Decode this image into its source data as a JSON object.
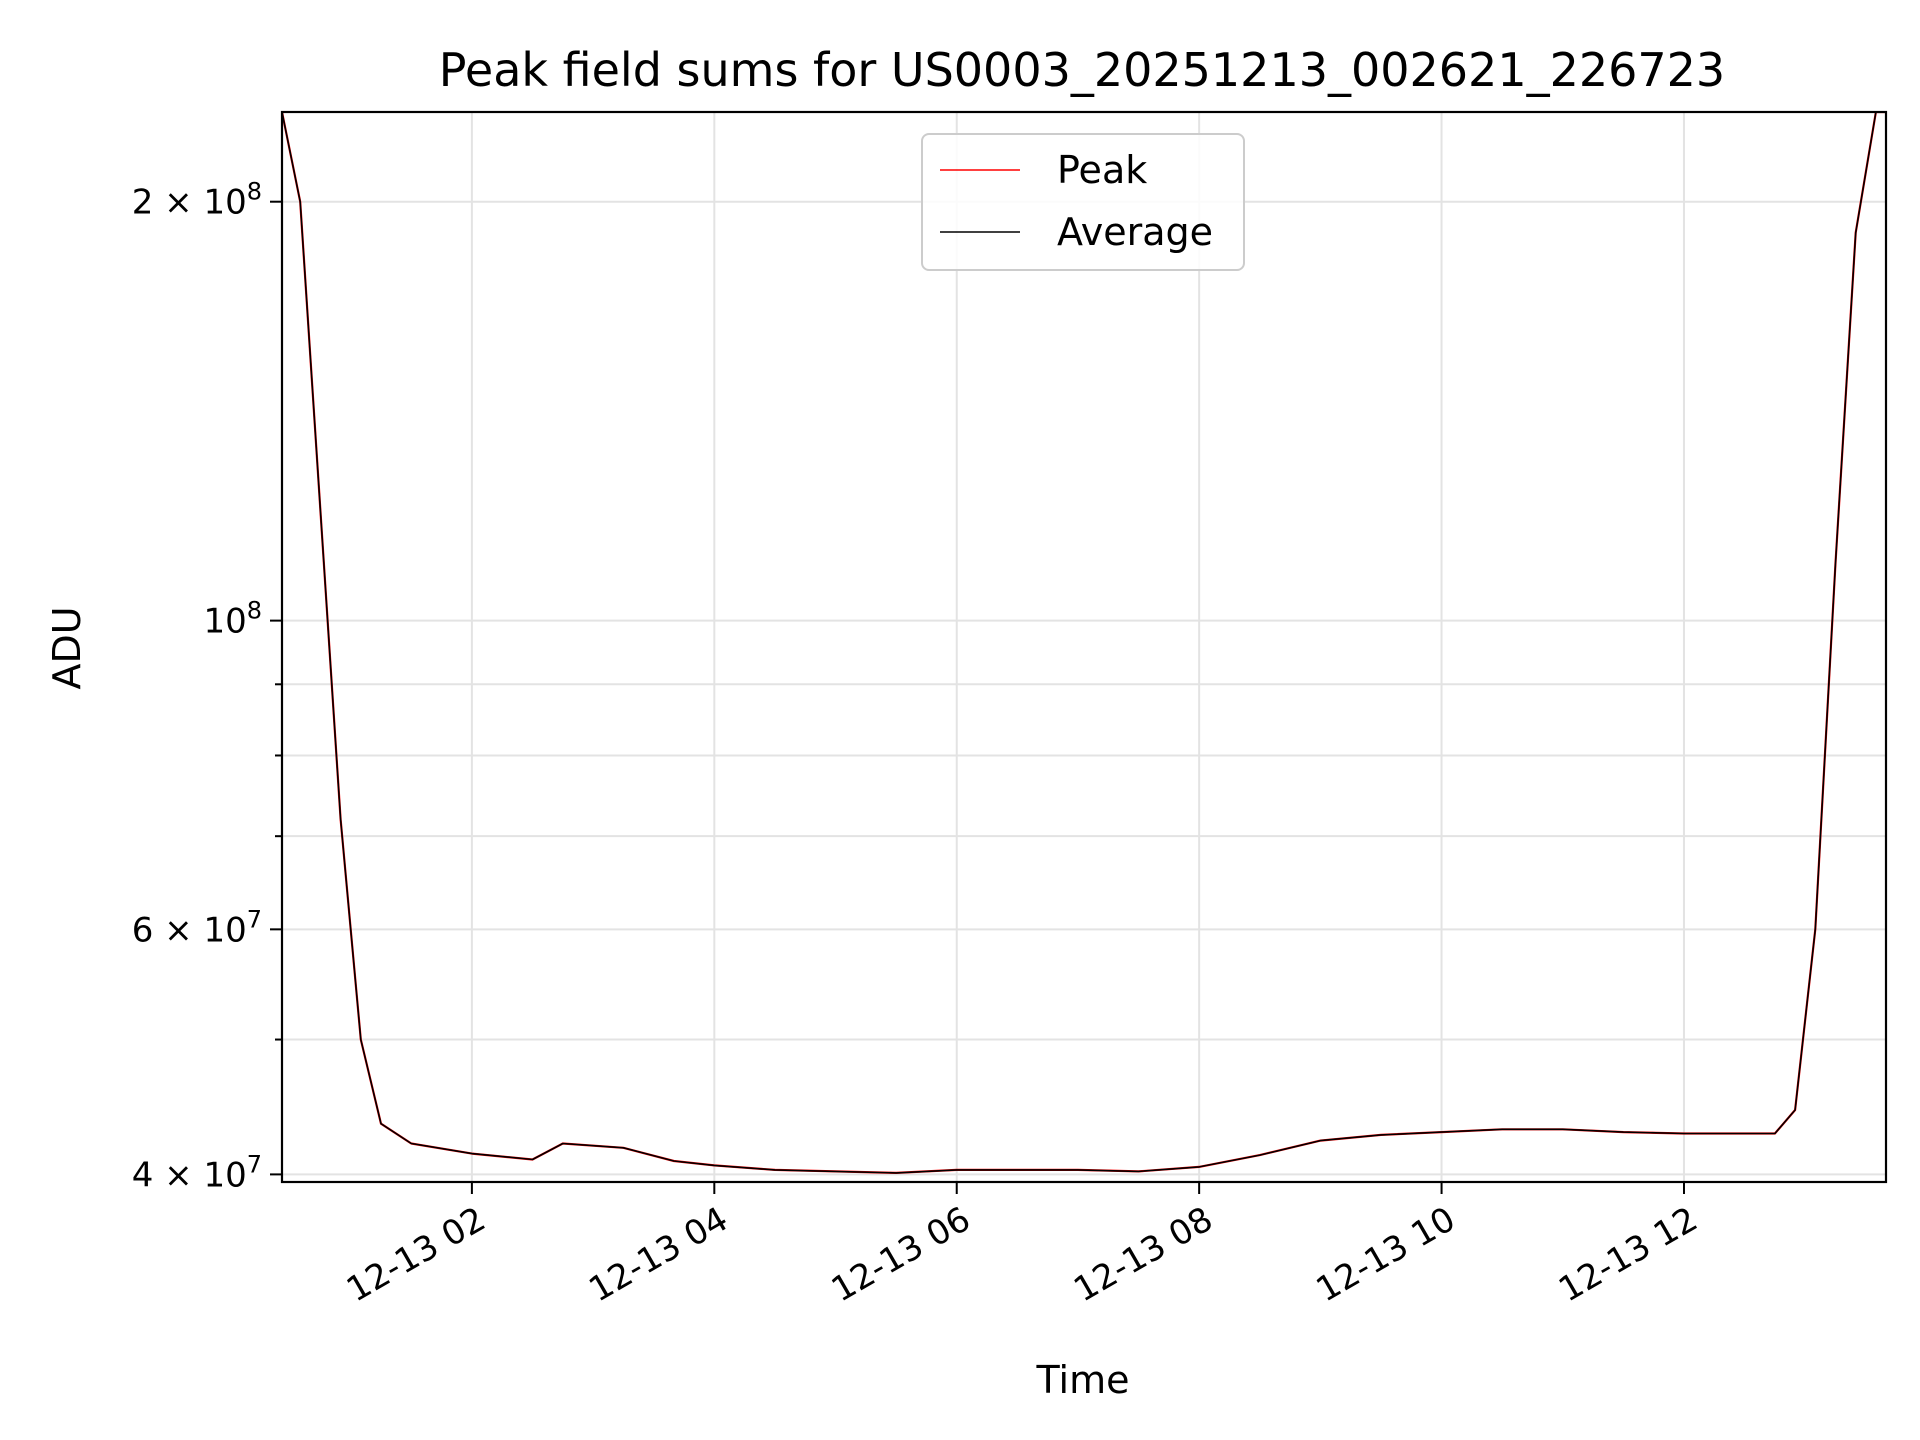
{
  "chart_data": {
    "type": "line",
    "title": "Peak field sums for US0003_20251213_002621_226723",
    "xlabel": "Time",
    "ylabel": "ADU",
    "x_scale": "time",
    "y_scale": "log",
    "xlim": [
      "2025-12-13 00:26",
      "2025-12-13 13:40"
    ],
    "ylim": [
      39500000,
      232000000
    ],
    "x_ticks": [
      {
        "t": "2025-12-13 02:00",
        "label": "12-13 02"
      },
      {
        "t": "2025-12-13 04:00",
        "label": "12-13 04"
      },
      {
        "t": "2025-12-13 06:00",
        "label": "12-13 06"
      },
      {
        "t": "2025-12-13 08:00",
        "label": "12-13 08"
      },
      {
        "t": "2025-12-13 10:00",
        "label": "12-13 10"
      },
      {
        "t": "2025-12-13 12:00",
        "label": "12-13 12"
      }
    ],
    "y_major_ticks": [
      {
        "value": 40000000,
        "base": "4 × 10",
        "exp": "7"
      },
      {
        "value": 60000000,
        "base": "6 × 10",
        "exp": "7"
      },
      {
        "value": 100000000,
        "base": "10",
        "exp": "8"
      },
      {
        "value": 200000000,
        "base": "2 × 10",
        "exp": "8"
      }
    ],
    "y_minor_ticks": [
      50000000,
      70000000,
      80000000,
      90000000
    ],
    "grid": true,
    "legend_position": "top-center",
    "series": [
      {
        "name": "Peak",
        "color": "#ff0000",
        "x": [
          "2025-12-13 00:26",
          "2025-12-13 00:35",
          "2025-12-13 00:45",
          "2025-12-13 00:55",
          "2025-12-13 01:05",
          "2025-12-13 01:15",
          "2025-12-13 01:30",
          "2025-12-13 02:00",
          "2025-12-13 02:30",
          "2025-12-13 02:45",
          "2025-12-13 03:15",
          "2025-12-13 03:40",
          "2025-12-13 04:00",
          "2025-12-13 04:30",
          "2025-12-13 05:00",
          "2025-12-13 05:30",
          "2025-12-13 06:00",
          "2025-12-13 06:30",
          "2025-12-13 07:00",
          "2025-12-13 07:30",
          "2025-12-13 08:00",
          "2025-12-13 08:30",
          "2025-12-13 09:00",
          "2025-12-13 09:30",
          "2025-12-13 10:00",
          "2025-12-13 10:30",
          "2025-12-13 11:00",
          "2025-12-13 11:30",
          "2025-12-13 12:00",
          "2025-12-13 12:30",
          "2025-12-13 12:45",
          "2025-12-13 12:55",
          "2025-12-13 13:05",
          "2025-12-13 13:15",
          "2025-12-13 13:25",
          "2025-12-13 13:35",
          "2025-12-13 13:40"
        ],
        "values": [
          232000000,
          200000000,
          120000000,
          72000000,
          50000000,
          43500000,
          42100000,
          41400000,
          41000000,
          42100000,
          41800000,
          40900000,
          40600000,
          40300000,
          40200000,
          40100000,
          40300000,
          40300000,
          40300000,
          40200000,
          40500000,
          41300000,
          42300000,
          42700000,
          42900000,
          43100000,
          43100000,
          42900000,
          42800000,
          42800000,
          42800000,
          44500000,
          60000000,
          110000000,
          190000000,
          232000000,
          232000000
        ]
      },
      {
        "name": "Average",
        "color": "#000000",
        "x": [
          "2025-12-13 00:26",
          "2025-12-13 00:35",
          "2025-12-13 00:45",
          "2025-12-13 00:55",
          "2025-12-13 01:05",
          "2025-12-13 01:15",
          "2025-12-13 01:30",
          "2025-12-13 02:00",
          "2025-12-13 02:30",
          "2025-12-13 02:45",
          "2025-12-13 03:15",
          "2025-12-13 03:40",
          "2025-12-13 04:00",
          "2025-12-13 04:30",
          "2025-12-13 05:00",
          "2025-12-13 05:30",
          "2025-12-13 06:00",
          "2025-12-13 06:30",
          "2025-12-13 07:00",
          "2025-12-13 07:30",
          "2025-12-13 08:00",
          "2025-12-13 08:30",
          "2025-12-13 09:00",
          "2025-12-13 09:30",
          "2025-12-13 10:00",
          "2025-12-13 10:30",
          "2025-12-13 11:00",
          "2025-12-13 11:30",
          "2025-12-13 12:00",
          "2025-12-13 12:30",
          "2025-12-13 12:45",
          "2025-12-13 12:55",
          "2025-12-13 13:05",
          "2025-12-13 13:15",
          "2025-12-13 13:25",
          "2025-12-13 13:35",
          "2025-12-13 13:40"
        ],
        "values": [
          232000000,
          200000000,
          120000000,
          72000000,
          50000000,
          43500000,
          42100000,
          41400000,
          41000000,
          42100000,
          41800000,
          40900000,
          40600000,
          40300000,
          40200000,
          40100000,
          40300000,
          40300000,
          40300000,
          40200000,
          40500000,
          41300000,
          42300000,
          42700000,
          42900000,
          43100000,
          43100000,
          42900000,
          42800000,
          42800000,
          42800000,
          44500000,
          60000000,
          110000000,
          190000000,
          232000000,
          232000000
        ]
      }
    ]
  }
}
